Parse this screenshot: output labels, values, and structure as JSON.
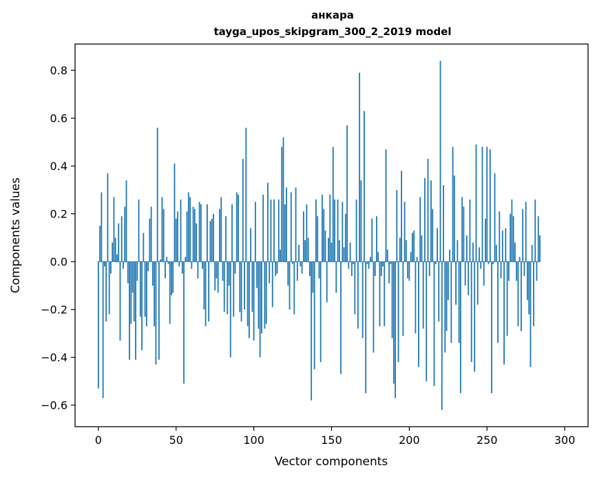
{
  "chart_data": {
    "type": "bar",
    "title": "анкара",
    "subtitle": "tayga_upos_skipgram_300_2_2019 model",
    "xlabel": "Vector components",
    "ylabel": "Components values",
    "xlim": [
      -15,
      315
    ],
    "ylim": [
      -0.69,
      0.91
    ],
    "xticks": [
      0,
      50,
      100,
      150,
      200,
      250,
      300
    ],
    "xtick_labels": [
      "0",
      "50",
      "100",
      "150",
      "200",
      "250",
      "300"
    ],
    "yticks": [
      -0.6,
      -0.4,
      -0.2,
      0.0,
      0.2,
      0.4,
      0.6,
      0.8
    ],
    "ytick_labels": [
      "−0.6",
      "−0.4",
      "−0.2",
      "0.0",
      "0.2",
      "0.4",
      "0.6",
      "0.8"
    ],
    "bar_color": "#1f77b4",
    "grid": false,
    "values": [
      -0.53,
      0.15,
      0.29,
      -0.57,
      -0.02,
      -0.25,
      0.37,
      -0.22,
      -0.05,
      0.08,
      0.27,
      0.1,
      0.03,
      0.16,
      -0.33,
      0.19,
      -0.03,
      0.23,
      0.34,
      -0.09,
      -0.41,
      -0.26,
      -0.13,
      -0.25,
      -0.41,
      -0.08,
      0.26,
      -0.23,
      -0.37,
      0.12,
      -0.23,
      -0.27,
      -0.04,
      0.18,
      0.23,
      -0.1,
      -0.27,
      -0.43,
      0.56,
      -0.41,
      0.01,
      0.27,
      0.22,
      -0.07,
      0.02,
      -0.01,
      -0.26,
      -0.14,
      -0.13,
      0.41,
      0.18,
      0.21,
      -0.02,
      0.26,
      -0.05,
      -0.51,
      0.02,
      0.21,
      0.29,
      0.27,
      -0.03,
      0.23,
      0.22,
      0.16,
      -0.07,
      0.25,
      0.24,
      -0.03,
      -0.2,
      -0.27,
      0.24,
      -0.25,
      0.17,
      0.18,
      0.2,
      -0.12,
      -0.07,
      -0.13,
      0.22,
      0.27,
      -0.08,
      -0.21,
      0.19,
      -0.22,
      -0.1,
      -0.4,
      0.24,
      -0.23,
      -0.05,
      0.29,
      0.28,
      -0.21,
      -0.25,
      0.43,
      -0.2,
      0.56,
      -0.27,
      -0.32,
      0.14,
      -0.21,
      -0.33,
      0.25,
      -0.11,
      -0.28,
      -0.4,
      -0.3,
      0.28,
      -0.28,
      -0.26,
      0.33,
      -0.09,
      0.26,
      -0.19,
      0.26,
      -0.06,
      -0.05,
      0.26,
      0.05,
      0.48,
      0.52,
      0.24,
      0.31,
      -0.1,
      -0.2,
      0.29,
      -0.01,
      -0.22,
      0.31,
      -0.08,
      0.07,
      -0.02,
      -0.05,
      0.21,
      0.09,
      0.24,
      0.1,
      -0.06,
      -0.58,
      -0.13,
      -0.45,
      0.26,
      0.19,
      -0.07,
      -0.42,
      0.28,
      0.22,
      0.13,
      -0.17,
      0.1,
      0.28,
      0.08,
      0.48,
      0.26,
      -0.13,
      0.26,
      0.09,
      -0.47,
      0.25,
      0.06,
      0.2,
      0.57,
      -0.03,
      0.08,
      -0.06,
      -0.01,
      -0.22,
      0.26,
      -0.28,
      0.79,
      0.34,
      -0.32,
      0.63,
      -0.55,
      -0.01,
      -0.03,
      0.02,
      0.18,
      -0.38,
      -0.06,
      0.19,
      0.04,
      -0.27,
      -0.06,
      -0.02,
      -0.27,
      0.47,
      0.05,
      -0.09,
      -0.01,
      -0.32,
      -0.51,
      -0.57,
      0.3,
      -0.42,
      0.1,
      0.38,
      -0.31,
      0.25,
      0.09,
      -0.07,
      -0.08,
      0.04,
      0.12,
      0.13,
      -0.3,
      0.02,
      -0.44,
      0.27,
      0.11,
      -0.28,
      0.35,
      -0.5,
      0.43,
      -0.06,
      0.34,
      0.22,
      -0.52,
      -0.01,
      0.14,
      -0.25,
      0.84,
      -0.62,
      0.32,
      -0.38,
      -0.29,
      -0.16,
      0.05,
      -0.34,
      0.48,
      0.36,
      -0.18,
      0.09,
      -0.34,
      -0.55,
      0.27,
      0.23,
      -0.1,
      0.11,
      -0.14,
      0.26,
      -0.42,
      0.08,
      -0.46,
      0.49,
      -0.18,
      0.06,
      -0.03,
      0.48,
      -0.1,
      0.18,
      0.48,
      -0.01,
      0.47,
      -0.55,
      -0.01,
      0.37,
      0.07,
      -0.34,
      0.21,
      -0.07,
      0.13,
      -0.43,
      0.14,
      -0.31,
      -0.08,
      0.2,
      0.26,
      0.19,
      0.08,
      -0.08,
      -0.27,
      0.02,
      -0.29,
      0.22,
      -0.06,
      0.25,
      -0.16,
      -0.22,
      -0.44,
      0.07,
      -0.27,
      0.26,
      -0.08,
      0.19,
      0.11
    ]
  }
}
